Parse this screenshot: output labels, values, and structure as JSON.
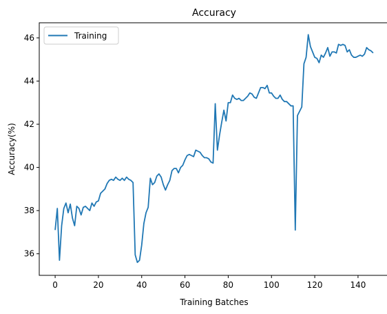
{
  "chart_data": {
    "type": "line",
    "title": "Accuracy",
    "xlabel": "Training Batches",
    "ylabel": "Accuracy(%)",
    "xlim": [
      -7.35,
      154.35
    ],
    "ylim": [
      35.0,
      46.7
    ],
    "xticks": [
      0,
      20,
      40,
      60,
      80,
      100,
      120,
      140
    ],
    "yticks": [
      36,
      38,
      40,
      42,
      44,
      46
    ],
    "grid": false,
    "legend": {
      "placement": "top-left"
    },
    "colors": {
      "series": "#1f77b4"
    },
    "series": [
      {
        "name": "Training",
        "x": [
          0,
          1,
          2,
          3,
          4,
          5,
          6,
          7,
          8,
          9,
          10,
          11,
          12,
          13,
          14,
          15,
          16,
          17,
          18,
          19,
          20,
          21,
          22,
          23,
          24,
          25,
          26,
          27,
          28,
          29,
          30,
          31,
          32,
          33,
          34,
          35,
          36,
          37,
          38,
          39,
          40,
          41,
          42,
          43,
          44,
          45,
          46,
          47,
          48,
          49,
          50,
          51,
          52,
          53,
          54,
          55,
          56,
          57,
          58,
          59,
          60,
          61,
          62,
          63,
          64,
          65,
          66,
          67,
          68,
          69,
          70,
          71,
          72,
          73,
          74,
          75,
          76,
          77,
          78,
          79,
          80,
          81,
          82,
          83,
          84,
          85,
          86,
          87,
          88,
          89,
          90,
          91,
          92,
          93,
          94,
          95,
          96,
          97,
          98,
          99,
          100,
          101,
          102,
          103,
          104,
          105,
          106,
          107,
          108,
          109,
          110,
          111,
          112,
          113,
          114,
          115,
          116,
          117,
          118,
          119,
          120,
          121,
          122,
          123,
          124,
          125,
          126,
          127,
          128,
          129,
          130,
          131,
          132,
          133,
          134,
          135,
          136,
          137,
          138,
          139,
          140,
          141,
          142,
          143,
          144,
          145,
          146,
          147
        ],
        "y": [
          37.1,
          38.1,
          35.7,
          37.3,
          38.1,
          38.35,
          37.9,
          38.3,
          37.65,
          37.3,
          38.2,
          38.1,
          37.8,
          38.15,
          38.2,
          38.1,
          38.0,
          38.35,
          38.2,
          38.4,
          38.45,
          38.8,
          38.9,
          39.0,
          39.25,
          39.4,
          39.45,
          39.4,
          39.55,
          39.45,
          39.4,
          39.5,
          39.4,
          39.55,
          39.45,
          39.4,
          39.3,
          35.95,
          35.6,
          35.7,
          36.4,
          37.4,
          37.9,
          38.15,
          39.5,
          39.2,
          39.3,
          39.6,
          39.7,
          39.55,
          39.2,
          38.95,
          39.2,
          39.4,
          39.85,
          39.95,
          39.95,
          39.75,
          40.0,
          40.1,
          40.35,
          40.55,
          40.6,
          40.55,
          40.5,
          40.8,
          40.75,
          40.7,
          40.55,
          40.45,
          40.45,
          40.4,
          40.25,
          40.2,
          42.95,
          40.8,
          41.5,
          42.1,
          42.65,
          42.15,
          43.0,
          43.0,
          43.35,
          43.2,
          43.15,
          43.2,
          43.1,
          43.1,
          43.2,
          43.3,
          43.45,
          43.4,
          43.25,
          43.2,
          43.45,
          43.7,
          43.7,
          43.65,
          43.8,
          43.45,
          43.45,
          43.3,
          43.2,
          43.2,
          43.35,
          43.15,
          43.05,
          43.05,
          42.95,
          42.85,
          42.85,
          37.1,
          42.4,
          42.6,
          42.8,
          44.8,
          45.1,
          46.15,
          45.6,
          45.35,
          45.1,
          45.05,
          44.85,
          45.2,
          45.1,
          45.3,
          45.55,
          45.15,
          45.35,
          45.35,
          45.3,
          45.7,
          45.65,
          45.7,
          45.65,
          45.35,
          45.45,
          45.2,
          45.1,
          45.1,
          45.15,
          45.2,
          45.15,
          45.25,
          45.55,
          45.45,
          45.4,
          45.3
        ]
      }
    ]
  }
}
